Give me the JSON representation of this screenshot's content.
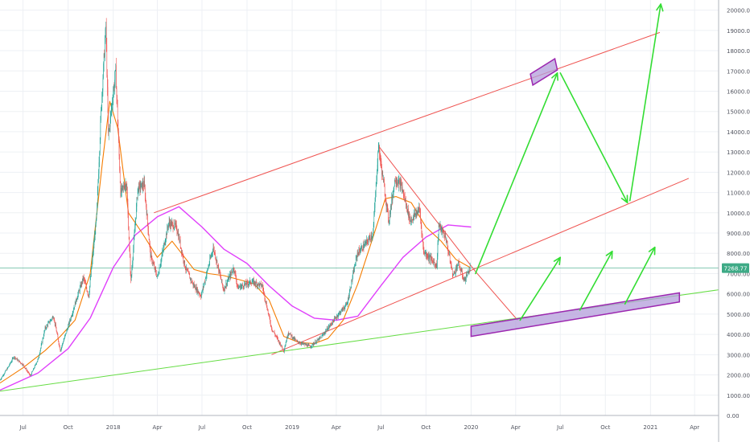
{
  "chart_data": {
    "type": "line",
    "title": "",
    "xlabel": "",
    "ylabel": "",
    "ylim": [
      0,
      20500
    ],
    "y_scale": "linear",
    "grid": true,
    "y_ticks": [
      0,
      1000,
      2000,
      3000,
      4000,
      5000,
      6000,
      7000,
      8000,
      9000,
      10000,
      11000,
      12000,
      13000,
      14000,
      15000,
      16000,
      17000,
      18000,
      19000,
      20000
    ],
    "y_tick_labels": [
      "0.00",
      "1000.00",
      "2000.00",
      "3000.00",
      "4000.00",
      "5000.00",
      "6000.00",
      "7000.00",
      "8000.00",
      "9000.00",
      "10000.00",
      "11000.00",
      "12000.00",
      "13000.00",
      "14000.00",
      "15000.00",
      "16000.00",
      "17000.00",
      "18000.00",
      "19000.00",
      "20000.00"
    ],
    "x_range": [
      "2017-05-15",
      "2021-05-20"
    ],
    "x_ticks": [
      {
        "date": "2017-07-01",
        "label": "Jul"
      },
      {
        "date": "2017-10-01",
        "label": "Oct"
      },
      {
        "date": "2018-01-01",
        "label": "2018"
      },
      {
        "date": "2018-04-01",
        "label": "Apr"
      },
      {
        "date": "2018-07-01",
        "label": "Jul"
      },
      {
        "date": "2018-10-01",
        "label": "Oct"
      },
      {
        "date": "2019-01-01",
        "label": "2019"
      },
      {
        "date": "2019-04-01",
        "label": "Apr"
      },
      {
        "date": "2019-07-01",
        "label": "Jul"
      },
      {
        "date": "2019-10-01",
        "label": "Oct"
      },
      {
        "date": "2020-01-01",
        "label": "2020"
      },
      {
        "date": "2020-04-01",
        "label": "Apr"
      },
      {
        "date": "2020-07-01",
        "label": "Jul"
      },
      {
        "date": "2020-10-01",
        "label": "Oct"
      },
      {
        "date": "2021-01-01",
        "label": "2021"
      },
      {
        "date": "2021-04-01",
        "label": "Apr"
      }
    ],
    "last_price": {
      "value": 7268.77,
      "label": "7268.77",
      "color": "#3eaa86"
    },
    "colors": {
      "up": "#26a69a",
      "down": "#ef5350",
      "ema_short": "#f57c00",
      "ma_long": "#e040fb",
      "trend_red": "#ef5350",
      "trend_green": "#66dd44",
      "projection": "#33dd33",
      "zone_fill": "#b39ddb",
      "zone_stroke": "#9c27b0"
    },
    "price": {
      "name": "",
      "points": [
        [
          "2017-05-15",
          1750
        ],
        [
          "2017-06-01",
          2400
        ],
        [
          "2017-06-12",
          2900
        ],
        [
          "2017-07-01",
          2500
        ],
        [
          "2017-07-16",
          1950
        ],
        [
          "2017-08-01",
          2800
        ],
        [
          "2017-08-15",
          4300
        ],
        [
          "2017-09-01",
          4900
        ],
        [
          "2017-09-15",
          3200
        ],
        [
          "2017-10-01",
          4400
        ],
        [
          "2017-10-20",
          5900
        ],
        [
          "2017-11-01",
          6800
        ],
        [
          "2017-11-12",
          5900
        ],
        [
          "2017-11-28",
          9800
        ],
        [
          "2017-12-08",
          15500
        ],
        [
          "2017-12-17",
          19200
        ],
        [
          "2017-12-22",
          13800
        ],
        [
          "2018-01-06",
          17000
        ],
        [
          "2018-01-16",
          11000
        ],
        [
          "2018-01-28",
          11500
        ],
        [
          "2018-02-06",
          6600
        ],
        [
          "2018-02-20",
          11200
        ],
        [
          "2018-03-05",
          11400
        ],
        [
          "2018-03-18",
          7900
        ],
        [
          "2018-04-01",
          6800
        ],
        [
          "2018-04-24",
          9500
        ],
        [
          "2018-05-10",
          9300
        ],
        [
          "2018-05-28",
          7300
        ],
        [
          "2018-06-12",
          6500
        ],
        [
          "2018-06-29",
          5900
        ],
        [
          "2018-07-24",
          8300
        ],
        [
          "2018-08-14",
          6200
        ],
        [
          "2018-09-04",
          7300
        ],
        [
          "2018-09-12",
          6300
        ],
        [
          "2018-10-10",
          6600
        ],
        [
          "2018-11-01",
          6400
        ],
        [
          "2018-11-20",
          4300
        ],
        [
          "2018-12-15",
          3200
        ],
        [
          "2018-12-24",
          4100
        ],
        [
          "2019-01-10",
          3650
        ],
        [
          "2019-02-07",
          3400
        ],
        [
          "2019-03-01",
          3850
        ],
        [
          "2019-04-02",
          4900
        ],
        [
          "2019-04-23",
          5500
        ],
        [
          "2019-05-14",
          8000
        ],
        [
          "2019-06-01",
          8500
        ],
        [
          "2019-06-15",
          9000
        ],
        [
          "2019-06-26",
          13300
        ],
        [
          "2019-07-17",
          9600
        ],
        [
          "2019-07-30",
          11700
        ],
        [
          "2019-08-12",
          11300
        ],
        [
          "2019-08-30",
          9600
        ],
        [
          "2019-09-18",
          10200
        ],
        [
          "2019-09-26",
          8100
        ],
        [
          "2019-10-23",
          7400
        ],
        [
          "2019-10-27",
          9400
        ],
        [
          "2019-11-10",
          8800
        ],
        [
          "2019-11-25",
          6900
        ],
        [
          "2019-12-06",
          7500
        ],
        [
          "2019-12-18",
          6650
        ],
        [
          "2019-12-30",
          7268
        ]
      ]
    },
    "ema_short": {
      "name": "",
      "points": [
        [
          "2017-05-15",
          1600
        ],
        [
          "2017-07-01",
          2350
        ],
        [
          "2017-08-15",
          3200
        ],
        [
          "2017-09-15",
          3900
        ],
        [
          "2017-10-15",
          4700
        ],
        [
          "2017-11-15",
          7000
        ],
        [
          "2017-12-10",
          12500
        ],
        [
          "2017-12-25",
          15500
        ],
        [
          "2018-01-10",
          14200
        ],
        [
          "2018-02-01",
          10000
        ],
        [
          "2018-03-01",
          9000
        ],
        [
          "2018-04-01",
          7800
        ],
        [
          "2018-05-01",
          8600
        ],
        [
          "2018-06-15",
          7200
        ],
        [
          "2018-07-15",
          7000
        ],
        [
          "2018-08-15",
          6900
        ],
        [
          "2018-09-15",
          6700
        ],
        [
          "2018-10-15",
          6500
        ],
        [
          "2018-11-15",
          5700
        ],
        [
          "2018-12-15",
          3900
        ],
        [
          "2019-01-15",
          3600
        ],
        [
          "2019-02-15",
          3550
        ],
        [
          "2019-03-15",
          3800
        ],
        [
          "2019-04-15",
          4700
        ],
        [
          "2019-05-15",
          6500
        ],
        [
          "2019-06-15",
          8800
        ],
        [
          "2019-07-10",
          10700
        ],
        [
          "2019-08-01",
          10800
        ],
        [
          "2019-09-01",
          10500
        ],
        [
          "2019-10-01",
          9300
        ],
        [
          "2019-11-01",
          8600
        ],
        [
          "2019-12-01",
          7700
        ],
        [
          "2019-12-30",
          7300
        ]
      ]
    },
    "ma_long": {
      "name": "",
      "points": [
        [
          "2017-05-15",
          1250
        ],
        [
          "2017-08-01",
          2100
        ],
        [
          "2017-10-01",
          3300
        ],
        [
          "2017-11-15",
          4800
        ],
        [
          "2018-01-01",
          7300
        ],
        [
          "2018-02-15",
          8900
        ],
        [
          "2018-04-01",
          9800
        ],
        [
          "2018-05-15",
          10300
        ],
        [
          "2018-07-01",
          9300
        ],
        [
          "2018-08-15",
          8200
        ],
        [
          "2018-10-01",
          7500
        ],
        [
          "2018-11-15",
          6400
        ],
        [
          "2019-01-01",
          5400
        ],
        [
          "2019-02-15",
          4800
        ],
        [
          "2019-04-01",
          4700
        ],
        [
          "2019-05-15",
          4900
        ],
        [
          "2019-07-01",
          6400
        ],
        [
          "2019-08-15",
          7800
        ],
        [
          "2019-10-01",
          8800
        ],
        [
          "2019-11-15",
          9400
        ],
        [
          "2020-01-01",
          9300
        ]
      ]
    },
    "trendlines": [
      {
        "id": "channel-upper",
        "color": "#ef5350",
        "p1": [
          "2018-03-25",
          10000
        ],
        "p2": [
          "2021-01-20",
          18900
        ]
      },
      {
        "id": "channel-lower",
        "color": "#ef5350",
        "p1": [
          "2018-11-20",
          3000
        ],
        "p2": [
          "2021-03-20",
          11700
        ]
      },
      {
        "id": "triangle-top",
        "color": "#ef5350",
        "p1": [
          "2019-06-26",
          13300
        ],
        "p2": [
          "2020-01-10",
          7100
        ]
      },
      {
        "id": "triangle-drop",
        "color": "#ef5350",
        "p1": [
          "2020-01-10",
          7100
        ],
        "p2": [
          "2020-04-05",
          4700
        ]
      },
      {
        "id": "long-support",
        "color": "#66dd44",
        "p1": [
          "2017-05-15",
          1200
        ],
        "p2": [
          "2021-05-20",
          6200
        ]
      }
    ],
    "projections": [
      {
        "id": "up-to-17k",
        "p1": [
          "2020-01-10",
          7000
        ],
        "p2": [
          "2020-06-25",
          16900
        ]
      },
      {
        "id": "down-to-10k",
        "p1": [
          "2020-07-01",
          16900
        ],
        "p2": [
          "2020-11-15",
          10500
        ]
      },
      {
        "id": "up-to-20k",
        "p1": [
          "2020-11-20",
          10600
        ],
        "p2": [
          "2021-01-22",
          20300
        ]
      },
      {
        "id": "support-arrow-1",
        "p1": [
          "2020-04-10",
          4700
        ],
        "p2": [
          "2020-07-01",
          7800
        ]
      },
      {
        "id": "support-arrow-2",
        "p1": [
          "2020-08-10",
          5200
        ],
        "p2": [
          "2020-10-15",
          8100
        ]
      },
      {
        "id": "support-arrow-3",
        "p1": [
          "2020-11-10",
          5500
        ],
        "p2": [
          "2021-01-10",
          8300
        ]
      }
    ],
    "zones": [
      {
        "id": "target-box",
        "corners": [
          [
            "2020-05-01",
            16850
          ],
          [
            "2020-06-20",
            17600
          ],
          [
            "2020-06-25",
            17050
          ],
          [
            "2020-05-06",
            16300
          ]
        ]
      },
      {
        "id": "support-box",
        "corners": [
          [
            "2020-01-01",
            4400
          ],
          [
            "2021-03-01",
            6050
          ],
          [
            "2021-03-01",
            5600
          ],
          [
            "2020-01-01",
            3900
          ]
        ]
      }
    ]
  }
}
